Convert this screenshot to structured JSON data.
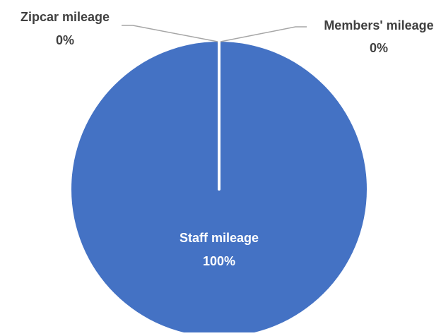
{
  "chart_data": {
    "type": "pie",
    "title": "",
    "legend": "none",
    "slices": [
      {
        "name": "Zipcar mileage",
        "value": 0,
        "label": "0%",
        "color": "#4472C4"
      },
      {
        "name": "Members' mileage",
        "value": 0,
        "label": "0%",
        "color": "#4472C4"
      },
      {
        "name": "Staff mileage",
        "value": 100,
        "label": "100%",
        "color": "#4472C4"
      }
    ],
    "colors": {
      "fill": "#4472C4",
      "border": "#ffffff",
      "inside_label": "#ffffff",
      "outside_label": "#404040",
      "leader_line": "#A6A6A6"
    }
  }
}
